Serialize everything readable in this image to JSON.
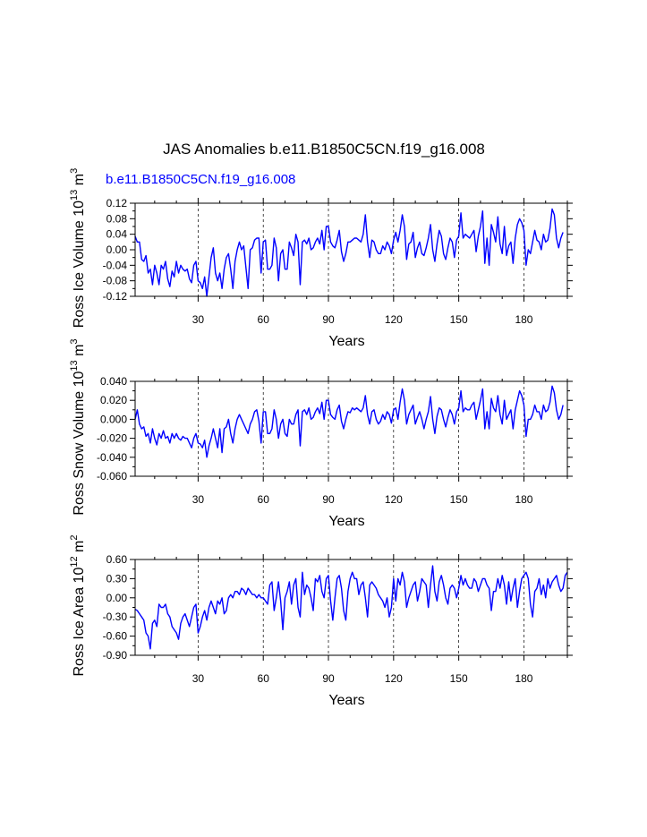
{
  "figure": {
    "title": "JAS Anomalies b.e11.B1850C5CN.f19_g16.008",
    "subtitle": "b.e11.B1850C5CN.f19_g16.008",
    "series_color": "#0000ff"
  },
  "chart_data": [
    {
      "type": "line",
      "title": "",
      "xlabel": "Years",
      "ylabel": "Ross Ice Volume 10^13 m^3",
      "ylabel_parts": {
        "base": "Ross Ice Volume 10",
        "exp1": "13",
        "mid": " m",
        "exp2": "3"
      },
      "xlim": [
        1,
        200
      ],
      "ylim": [
        -0.12,
        0.12
      ],
      "xticks": [
        30,
        60,
        90,
        120,
        150,
        180
      ],
      "xtick_labels": [
        "30",
        "60",
        "90",
        "120",
        "150",
        "180"
      ],
      "yticks": [
        -0.12,
        -0.08,
        -0.04,
        0.0,
        0.04,
        0.08,
        0.12
      ],
      "ytick_labels": [
        "-0.12",
        "-0.08",
        "-0.04",
        "0.00",
        "0.04",
        "0.08",
        "0.12"
      ],
      "yminor": [
        -0.1,
        -0.06,
        -0.02,
        0.02,
        0.06,
        0.1
      ],
      "grid_x": [
        30,
        60,
        90,
        120,
        150,
        180
      ],
      "series": [
        {
          "name": "Ross Ice Volume",
          "values": [
            0.035,
            0.02,
            0.02,
            -0.025,
            -0.03,
            -0.015,
            -0.06,
            -0.05,
            -0.09,
            -0.04,
            -0.06,
            -0.09,
            -0.04,
            -0.05,
            -0.03,
            -0.075,
            -0.095,
            -0.055,
            -0.07,
            -0.03,
            -0.06,
            -0.04,
            -0.05,
            -0.055,
            -0.05,
            -0.075,
            -0.085,
            -0.04,
            -0.03,
            -0.08,
            -0.085,
            -0.1,
            -0.07,
            -0.12,
            -0.07,
            -0.02,
            0.005,
            -0.06,
            -0.08,
            -0.06,
            -0.1,
            -0.05,
            -0.02,
            -0.01,
            -0.05,
            -0.1,
            -0.03,
            0.0,
            0.02,
            0.0,
            0.01,
            -0.045,
            -0.1,
            0.0,
            0.005,
            0.025,
            0.03,
            0.03,
            -0.06,
            0.02,
            0.025,
            -0.05,
            -0.05,
            -0.04,
            0.03,
            0.005,
            -0.08,
            -0.01,
            0.0,
            -0.05,
            -0.05,
            0.02,
            0.005,
            -0.015,
            0.04,
            0.02,
            -0.09,
            0.02,
            0.025,
            0.015,
            0.03,
            0.0,
            0.005,
            0.02,
            0.03,
            0.015,
            0.05,
            0.0,
            0.06,
            0.06,
            0.02,
            0.01,
            0.005,
            0.025,
            0.05,
            -0.005,
            -0.03,
            -0.01,
            0.02,
            0.02,
            0.025,
            0.03,
            0.03,
            0.025,
            0.02,
            0.04,
            0.09,
            0.02,
            -0.02,
            0.025,
            0.02,
            0.0,
            -0.01,
            -0.01,
            0.01,
            0.0,
            0.02,
            0.01,
            -0.01,
            0.025,
            0.045,
            0.02,
            0.05,
            0.09,
            0.06,
            -0.025,
            0.015,
            0.02,
            0.045,
            -0.02,
            0.005,
            0.02,
            -0.01,
            -0.015,
            0.005,
            0.03,
            0.065,
            0.0,
            -0.03,
            0.015,
            0.05,
            0.035,
            -0.01,
            -0.025,
            0.005,
            0.03,
            0.02,
            -0.02,
            0.025,
            0.035,
            0.095,
            0.03,
            0.04,
            0.035,
            0.03,
            0.04,
            0.05,
            -0.005,
            0.035,
            0.06,
            0.1,
            -0.035,
            0.03,
            -0.04,
            0.065,
            0.045,
            0.02,
            0.085,
            0.015,
            -0.01,
            0.06,
            -0.015,
            0.01,
            0.02,
            -0.035,
            0.03,
            0.065,
            0.08,
            0.07,
            0.05,
            -0.04,
            0.0,
            -0.01,
            0.02,
            0.05,
            0.025,
            0.02,
            0.0,
            0.04,
            0.02,
            0.025,
            0.055,
            0.105,
            0.09,
            0.03,
            0.005,
            0.03,
            0.045
          ]
        }
      ]
    },
    {
      "type": "line",
      "title": "",
      "xlabel": "Years",
      "ylabel": "Ross Snow Volume 10^13 m^3",
      "ylabel_parts": {
        "base": "Ross Snow Volume 10",
        "exp1": "13",
        "mid": " m",
        "exp2": "3"
      },
      "xlim": [
        1,
        200
      ],
      "ylim": [
        -0.06,
        0.04
      ],
      "xticks": [
        30,
        60,
        90,
        120,
        150,
        180
      ],
      "xtick_labels": [
        "30",
        "60",
        "90",
        "120",
        "150",
        "180"
      ],
      "yticks": [
        -0.06,
        -0.04,
        -0.02,
        0.0,
        0.02,
        0.04
      ],
      "ytick_labels": [
        "-0.060",
        "-0.040",
        "-0.020",
        "0.000",
        "0.020",
        "0.040"
      ],
      "yminor": [
        -0.05,
        -0.03,
        -0.01,
        0.01,
        0.03
      ],
      "grid_x": [
        30,
        60,
        90,
        120,
        150,
        180
      ],
      "series": [
        {
          "name": "Ross Snow Volume",
          "values": [
            0.0,
            0.01,
            -0.005,
            -0.01,
            -0.008,
            -0.018,
            -0.015,
            -0.025,
            -0.01,
            -0.02,
            -0.027,
            -0.015,
            -0.02,
            -0.012,
            -0.02,
            -0.018,
            -0.025,
            -0.015,
            -0.02,
            -0.015,
            -0.02,
            -0.022,
            -0.018,
            -0.02,
            -0.02,
            -0.025,
            -0.03,
            -0.02,
            -0.015,
            -0.025,
            -0.026,
            -0.03,
            -0.022,
            -0.04,
            -0.028,
            -0.02,
            -0.01,
            -0.02,
            -0.03,
            -0.01,
            -0.035,
            -0.01,
            -0.008,
            0.0,
            -0.015,
            -0.025,
            -0.01,
            0.0,
            0.005,
            0.0,
            -0.005,
            -0.01,
            -0.015,
            -0.005,
            0.0,
            0.008,
            0.01,
            -0.002,
            -0.025,
            0.008,
            0.008,
            -0.015,
            -0.015,
            -0.01,
            0.01,
            0.0,
            -0.02,
            -0.005,
            0.0,
            -0.015,
            -0.018,
            0.0,
            -0.005,
            -0.005,
            0.005,
            0.01,
            -0.028,
            0.008,
            0.01,
            0.005,
            0.012,
            0.0,
            0.002,
            0.008,
            0.012,
            0.006,
            0.018,
            0.0,
            0.02,
            0.02,
            0.005,
            0.002,
            0.0,
            0.01,
            0.015,
            -0.002,
            -0.01,
            0.0,
            0.008,
            0.007,
            0.012,
            0.01,
            0.012,
            0.01,
            0.008,
            0.012,
            0.025,
            0.005,
            -0.005,
            0.008,
            0.01,
            0.0,
            -0.005,
            -0.002,
            0.005,
            0.0,
            0.008,
            0.005,
            -0.004,
            0.01,
            0.012,
            0.0,
            0.018,
            0.032,
            0.02,
            -0.005,
            0.005,
            0.01,
            0.015,
            -0.005,
            0.002,
            0.008,
            0.0,
            -0.01,
            0.0,
            0.008,
            0.024,
            0.0,
            -0.015,
            0.003,
            0.012,
            0.01,
            0.0,
            -0.008,
            0.002,
            0.01,
            0.005,
            -0.005,
            0.008,
            0.012,
            0.03,
            0.008,
            0.012,
            0.01,
            0.01,
            0.015,
            0.018,
            0.0,
            0.01,
            0.02,
            0.032,
            -0.01,
            0.008,
            -0.01,
            0.022,
            0.012,
            0.008,
            0.025,
            0.005,
            -0.005,
            0.02,
            0.0,
            0.005,
            0.01,
            -0.01,
            0.01,
            0.02,
            0.03,
            0.025,
            0.015,
            -0.018,
            0.0,
            0.0,
            0.005,
            0.015,
            0.008,
            0.008,
            0.0,
            0.015,
            0.008,
            0.01,
            0.018,
            0.035,
            0.028,
            0.01,
            0.0,
            0.005,
            0.015
          ]
        }
      ]
    },
    {
      "type": "line",
      "title": "",
      "xlabel": "Years",
      "ylabel": "Ross Ice Area 10^12 m^2",
      "ylabel_parts": {
        "base": "Ross Ice Area 10",
        "exp1": "12",
        "mid": " m",
        "exp2": "2"
      },
      "xlim": [
        1,
        200
      ],
      "ylim": [
        -0.9,
        0.6
      ],
      "xticks": [
        30,
        60,
        90,
        120,
        150,
        180
      ],
      "xtick_labels": [
        "30",
        "60",
        "90",
        "120",
        "150",
        "180"
      ],
      "yticks": [
        -0.9,
        -0.6,
        -0.3,
        0.0,
        0.3,
        0.6
      ],
      "ytick_labels": [
        "-0.90",
        "-0.60",
        "-0.30",
        "0.00",
        "0.30",
        "0.60"
      ],
      "yminor": [
        -0.75,
        -0.45,
        -0.15,
        0.15,
        0.45
      ],
      "grid_x": [
        30,
        60,
        90,
        120,
        150,
        180
      ],
      "series": [
        {
          "name": "Ross Ice Area",
          "values": [
            -0.18,
            -0.2,
            -0.25,
            -0.3,
            -0.35,
            -0.55,
            -0.6,
            -0.8,
            -0.4,
            -0.35,
            -0.45,
            -0.1,
            -0.15,
            -0.15,
            -0.1,
            -0.25,
            -0.3,
            -0.45,
            -0.5,
            -0.55,
            -0.65,
            -0.4,
            -0.3,
            -0.25,
            -0.35,
            -0.45,
            -0.3,
            -0.15,
            -0.1,
            -0.55,
            -0.45,
            -0.3,
            -0.2,
            -0.35,
            -0.15,
            -0.05,
            -0.15,
            -0.25,
            -0.05,
            -0.1,
            0.0,
            -0.25,
            -0.2,
            0.0,
            0.05,
            0.0,
            0.1,
            0.1,
            0.05,
            0.15,
            0.12,
            0.05,
            0.15,
            0.1,
            0.05,
            0.05,
            0.0,
            0.05,
            0.0,
            0.0,
            -0.05,
            -0.1,
            0.2,
            0.25,
            -0.2,
            0.0,
            0.25,
            -0.05,
            -0.5,
            0.0,
            0.1,
            0.25,
            -0.1,
            0.2,
            0.3,
            -0.15,
            -0.3,
            0.4,
            0.05,
            0.2,
            0.15,
            0.0,
            -0.2,
            0.3,
            0.25,
            0.35,
            0.1,
            0.0,
            0.3,
            0.35,
            -0.05,
            -0.35,
            0.0,
            0.3,
            0.35,
            0.15,
            -0.2,
            -0.35,
            0.1,
            0.3,
            0.4,
            0.3,
            0.3,
            0.05,
            0.2,
            0.25,
            0.0,
            -0.3,
            0.2,
            0.25,
            0.2,
            0.15,
            0.05,
            0.0,
            -0.05,
            -0.15,
            0.0,
            -0.3,
            -0.15,
            0.3,
            -0.05,
            0.3,
            0.2,
            0.4,
            0.25,
            -0.15,
            0.0,
            0.1,
            0.2,
            0.25,
            -0.05,
            0.1,
            0.3,
            0.25,
            0.2,
            -0.15,
            0.2,
            0.5,
            0.1,
            -0.05,
            0.25,
            0.35,
            0.2,
            0.0,
            -0.1,
            0.15,
            0.2,
            0.15,
            0.0,
            0.15,
            0.35,
            0.2,
            0.3,
            0.2,
            0.15,
            0.15,
            0.3,
            0.25,
            0.1,
            0.2,
            0.3,
            0.3,
            0.2,
            0.15,
            -0.2,
            0.1,
            0.1,
            0.3,
            0.15,
            0.35,
            0.2,
            -0.1,
            0.25,
            -0.05,
            0.15,
            0.3,
            -0.15,
            0.1,
            0.3,
            0.35,
            0.4,
            0.3,
            -0.1,
            -0.3,
            0.1,
            0.15,
            0.3,
            0.05,
            0.2,
            0.0,
            0.3,
            0.15,
            0.25,
            0.3,
            0.35,
            0.2,
            0.1,
            0.15,
            0.35,
            0.4
          ]
        }
      ]
    }
  ]
}
